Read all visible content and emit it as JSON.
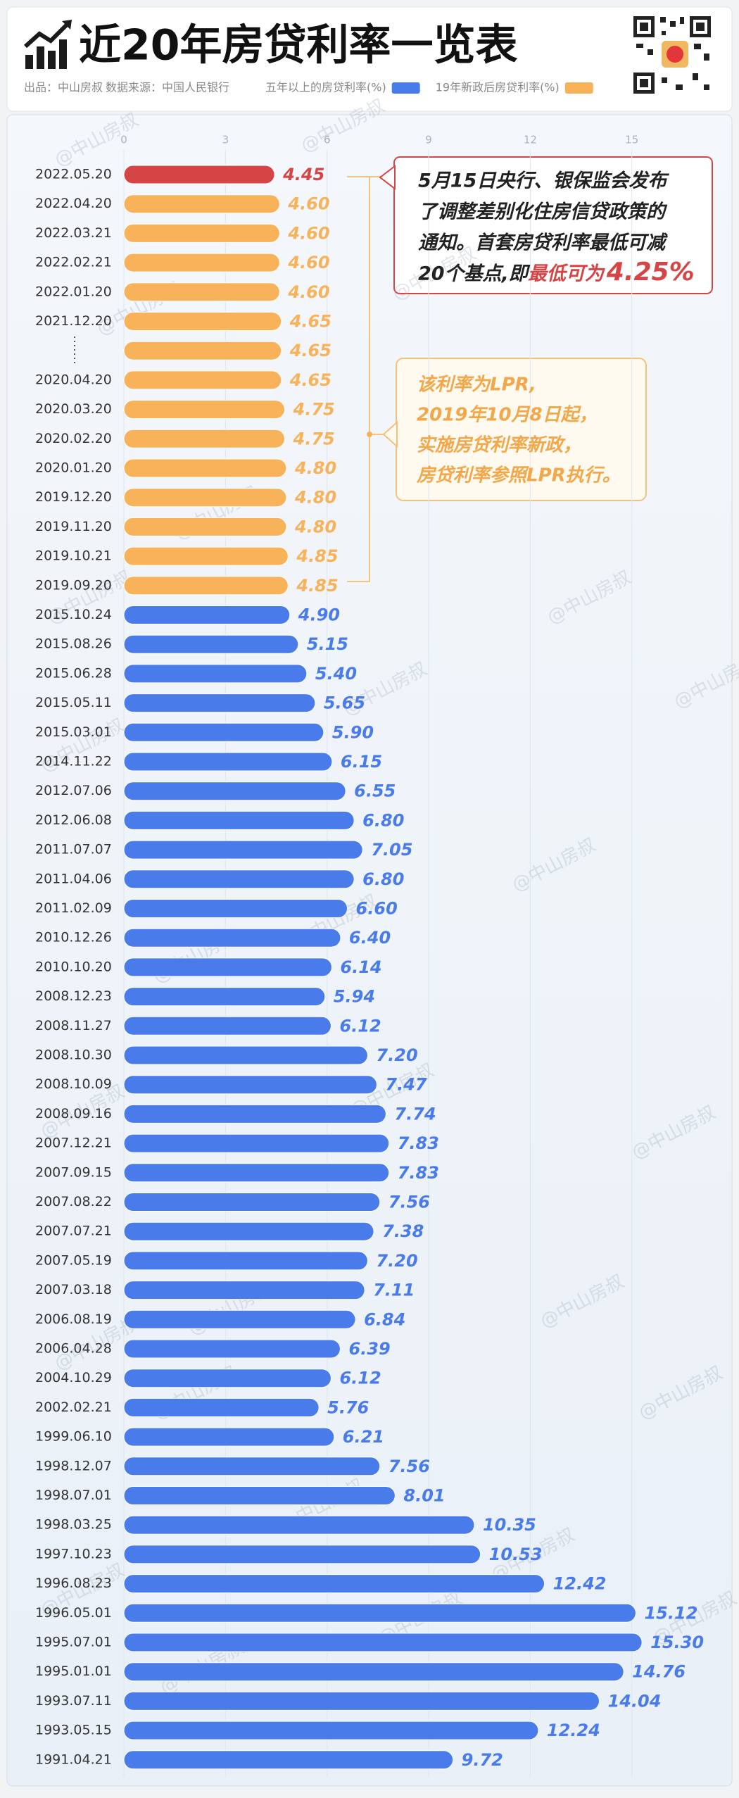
{
  "title": "近20年房贷利率一览表",
  "source": {
    "producer": "出品：中山房叔",
    "data_source": "数据来源：中国人民银行"
  },
  "watermark": "@中山房叔",
  "chart_data": {
    "type": "bar",
    "orientation": "horizontal",
    "legend": [
      {
        "name": "五年以上的房贷利率(%)",
        "color": "#4a7bea"
      },
      {
        "name": "19年新政后房贷利率(%)",
        "color": "#f7b25a"
      }
    ],
    "xlim": [
      0,
      17.5
    ],
    "xticks": [
      0,
      3,
      6,
      9,
      12,
      15
    ],
    "grid": true,
    "categories": [
      "2022.05.20",
      "2022.04.20",
      "2022.03.21",
      "2022.02.21",
      "2022.01.20",
      "2021.12.20",
      null,
      "2020.04.20",
      "2020.03.20",
      "2020.02.20",
      "2020.01.20",
      "2019.12.20",
      "2019.11.20",
      "2019.10.21",
      "2019.09.20",
      "2015.10.24",
      "2015.08.26",
      "2015.06.28",
      "2015.05.11",
      "2015.03.01",
      "2014.11.22",
      "2012.07.06",
      "2012.06.08",
      "2011.07.07",
      "2011.04.06",
      "2011.02.09",
      "2010.12.26",
      "2010.10.20",
      "2008.12.23",
      "2008.11.27",
      "2008.10.30",
      "2008.10.09",
      "2008.09.16",
      "2007.12.21",
      "2007.09.15",
      "2007.08.22",
      "2007.07.21",
      "2007.05.19",
      "2007.03.18",
      "2006.08.19",
      "2006.04.28",
      "2004.10.29",
      "2002.02.21",
      "1999.06.10",
      "1998.12.07",
      "1998.07.01",
      "1998.03.25",
      "1997.10.23",
      "1996.08.23",
      "1996.05.01",
      "1995.07.01",
      "1995.01.01",
      "1993.07.11",
      "1993.05.15",
      "1991.04.21"
    ],
    "values": [
      4.45,
      4.6,
      4.6,
      4.6,
      4.6,
      4.65,
      4.65,
      4.65,
      4.75,
      4.75,
      4.8,
      4.8,
      4.8,
      4.85,
      4.85,
      4.9,
      5.15,
      5.4,
      5.65,
      5.9,
      6.15,
      6.55,
      6.8,
      7.05,
      6.8,
      6.6,
      6.4,
      6.14,
      5.94,
      6.12,
      7.2,
      7.47,
      7.74,
      7.83,
      7.83,
      7.56,
      7.38,
      7.2,
      7.11,
      6.84,
      6.39,
      6.12,
      5.76,
      6.21,
      7.56,
      8.01,
      10.35,
      10.53,
      12.42,
      15.12,
      15.3,
      14.76,
      14.04,
      12.24,
      9.72
    ],
    "value_labels": [
      "4.45",
      "4.60",
      "4.60",
      "4.60",
      "4.60",
      "4.65",
      "4.65",
      "4.65",
      "4.75",
      "4.75",
      "4.80",
      "4.80",
      "4.80",
      "4.85",
      "4.85",
      "4.90",
      "5.15",
      "5.40",
      "5.65",
      "5.90",
      "6.15",
      "6.55",
      "6.80",
      "7.05",
      "6.80",
      "6.60",
      "6.40",
      "6.14",
      "5.94",
      "6.12",
      "7.20",
      "7.47",
      "7.74",
      "7.83",
      "7.83",
      "7.56",
      "7.38",
      "7.20",
      "7.11",
      "6.84",
      "6.39",
      "6.12",
      "5.76",
      "6.21",
      "7.56",
      "8.01",
      "10.35",
      "10.53",
      "12.42",
      "15.12",
      "15.30",
      "14.76",
      "14.04",
      "12.24",
      "9.72"
    ],
    "colors": [
      "#d64545",
      "#f7b25a",
      "#f7b25a",
      "#f7b25a",
      "#f7b25a",
      "#f7b25a",
      "#f7b25a",
      "#f7b25a",
      "#f7b25a",
      "#f7b25a",
      "#f7b25a",
      "#f7b25a",
      "#f7b25a",
      "#f7b25a",
      "#f7b25a",
      "#4a7bea",
      "#4a7bea",
      "#4a7bea",
      "#4a7bea",
      "#4a7bea",
      "#4a7bea",
      "#4a7bea",
      "#4a7bea",
      "#4a7bea",
      "#4a7bea",
      "#4a7bea",
      "#4a7bea",
      "#4a7bea",
      "#4a7bea",
      "#4a7bea",
      "#4a7bea",
      "#4a7bea",
      "#4a7bea",
      "#4a7bea",
      "#4a7bea",
      "#4a7bea",
      "#4a7bea",
      "#4a7bea",
      "#4a7bea",
      "#4a7bea",
      "#4a7bea",
      "#4a7bea",
      "#4a7bea",
      "#4a7bea",
      "#4a7bea",
      "#4a7bea",
      "#4a7bea",
      "#4a7bea",
      "#4a7bea",
      "#4a7bea",
      "#4a7bea",
      "#4a7bea",
      "#4a7bea",
      "#4a7bea",
      "#4a7bea"
    ],
    "annotations": [
      {
        "lines": [
          "5月15日央行、银保监会发布",
          "了调整差别化住房信贷政策的",
          "通知。首套房贷利率最低可减",
          "20个基点,即"
        ],
        "highlight": "最低可为",
        "highlight_value": "4.25%"
      },
      {
        "lines": [
          "该利率为LPR,",
          "2019年10月8日起，",
          "实施房贷利率新政，",
          "房贷利率参照LPR执行。"
        ]
      }
    ]
  }
}
